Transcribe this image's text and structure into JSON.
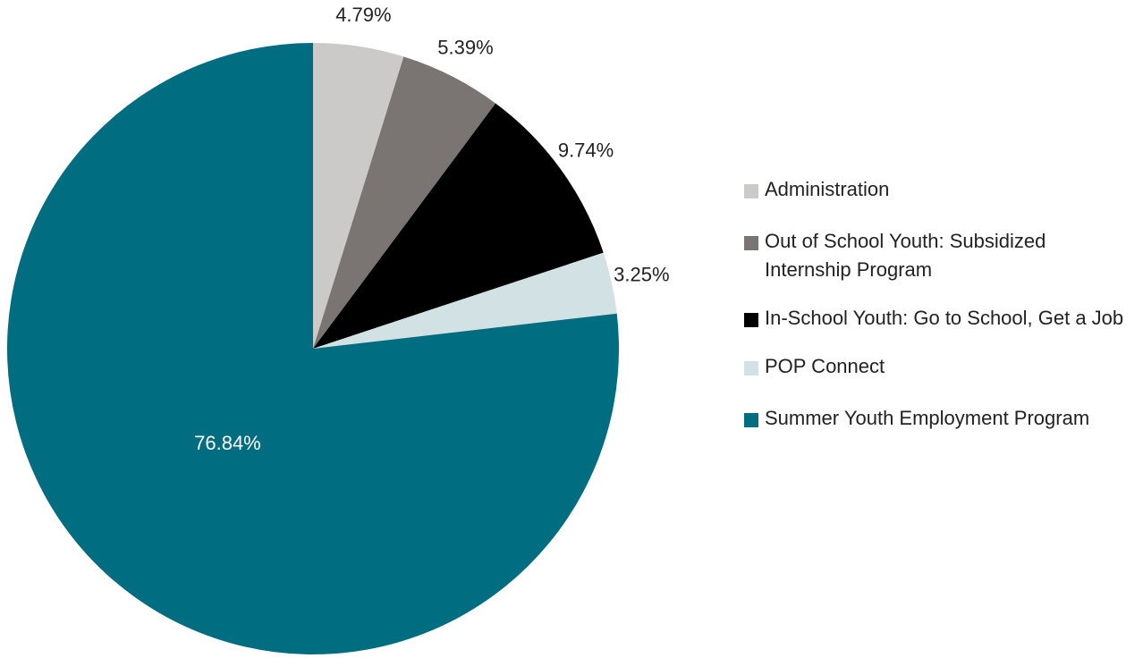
{
  "chart_data": {
    "type": "pie",
    "categories": [
      "Administration",
      "Out of School Youth: Subsidized Internship Program",
      "In-School Youth: Go to School, Get a Job",
      "POP Connect",
      "Summer Youth Employment Program"
    ],
    "values": [
      4.79,
      5.39,
      9.74,
      3.25,
      76.84
    ],
    "value_labels": [
      "4.79%",
      "5.39%",
      "9.74%",
      "3.25%",
      "76.84%"
    ],
    "colors": [
      "#cccac8",
      "#7a7573",
      "#000000",
      "#d2e1e4",
      "#006e80"
    ],
    "legend": "right"
  }
}
